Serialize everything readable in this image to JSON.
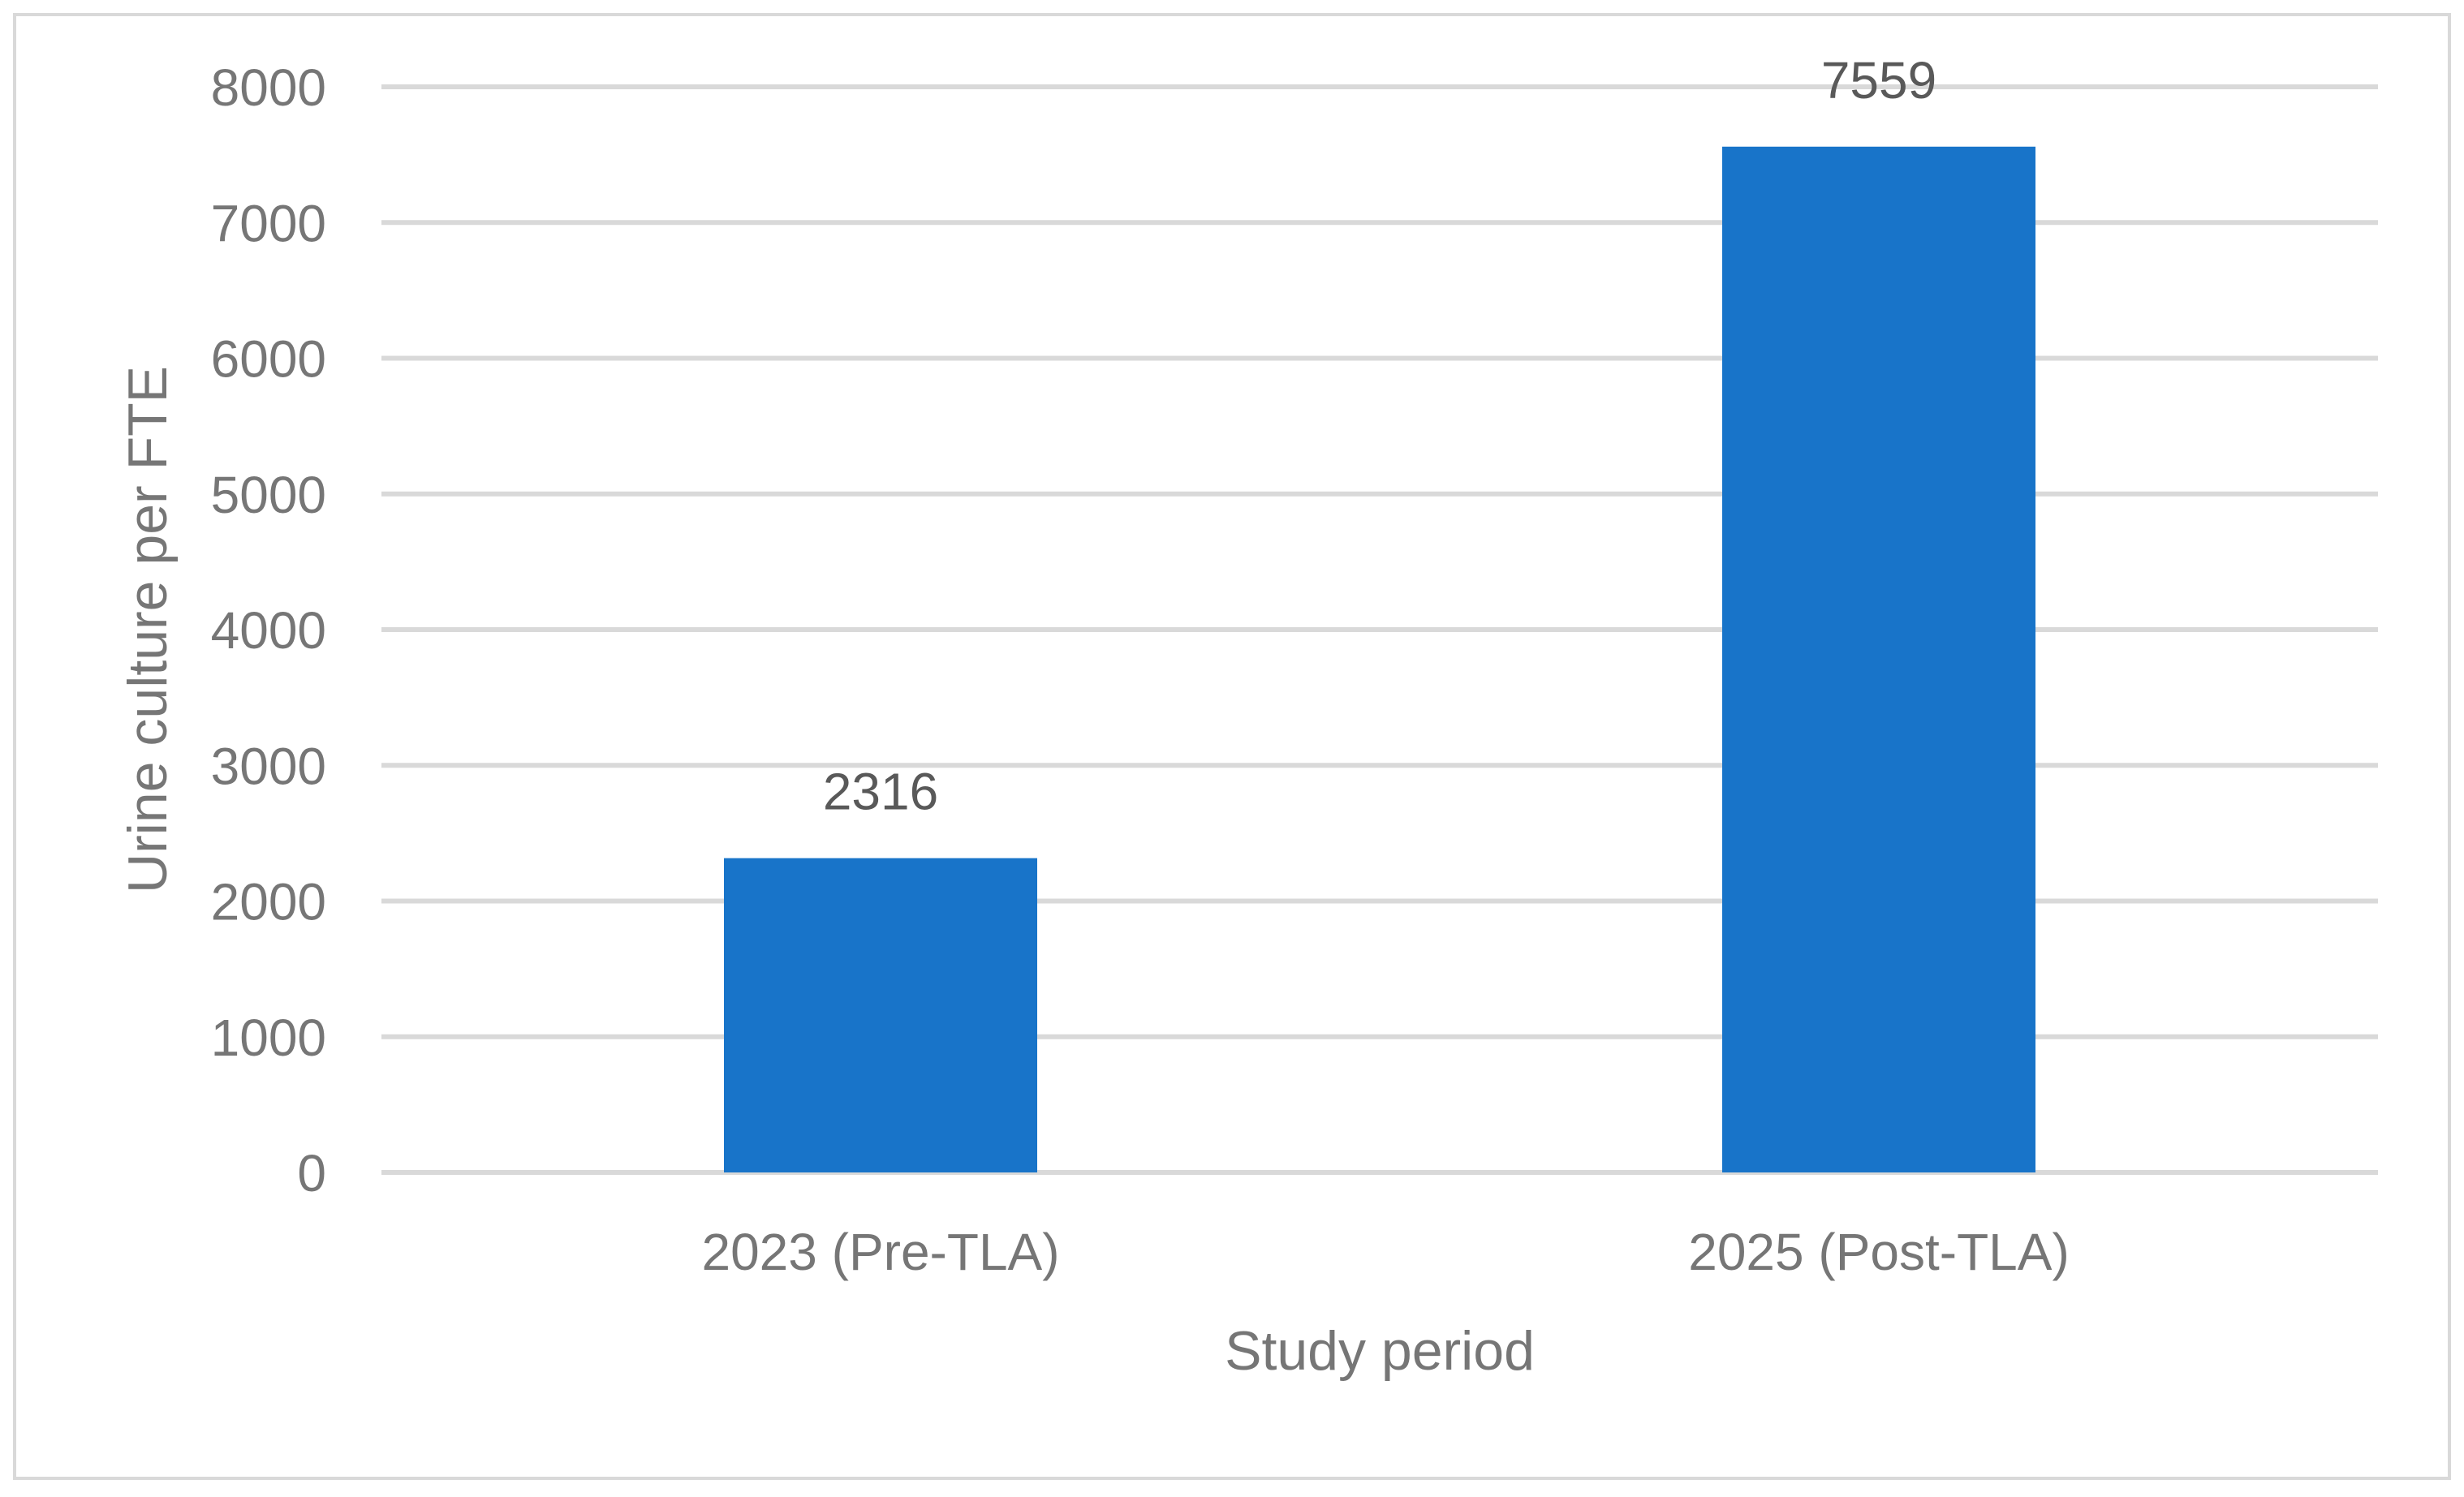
{
  "colors": {
    "bar": "#1874C9",
    "gridline": "#D9D9D9",
    "axis_text": "#767676",
    "data_label": "#595959",
    "frame": "#D9D9D9"
  },
  "chart_data": {
    "type": "bar",
    "title": "",
    "xlabel": "Study period",
    "ylabel": "Urine culture per FTE",
    "categories": [
      "2023 (Pre-TLA)",
      "2025 (Post-TLA)"
    ],
    "series": [
      {
        "values": [
          2316,
          7559
        ]
      }
    ],
    "data_labels": [
      "2316",
      "7559"
    ],
    "ylim": [
      0,
      8000
    ],
    "yticks": [
      0,
      1000,
      2000,
      3000,
      4000,
      5000,
      6000,
      7000,
      8000
    ],
    "grid": true,
    "legend": "none"
  }
}
